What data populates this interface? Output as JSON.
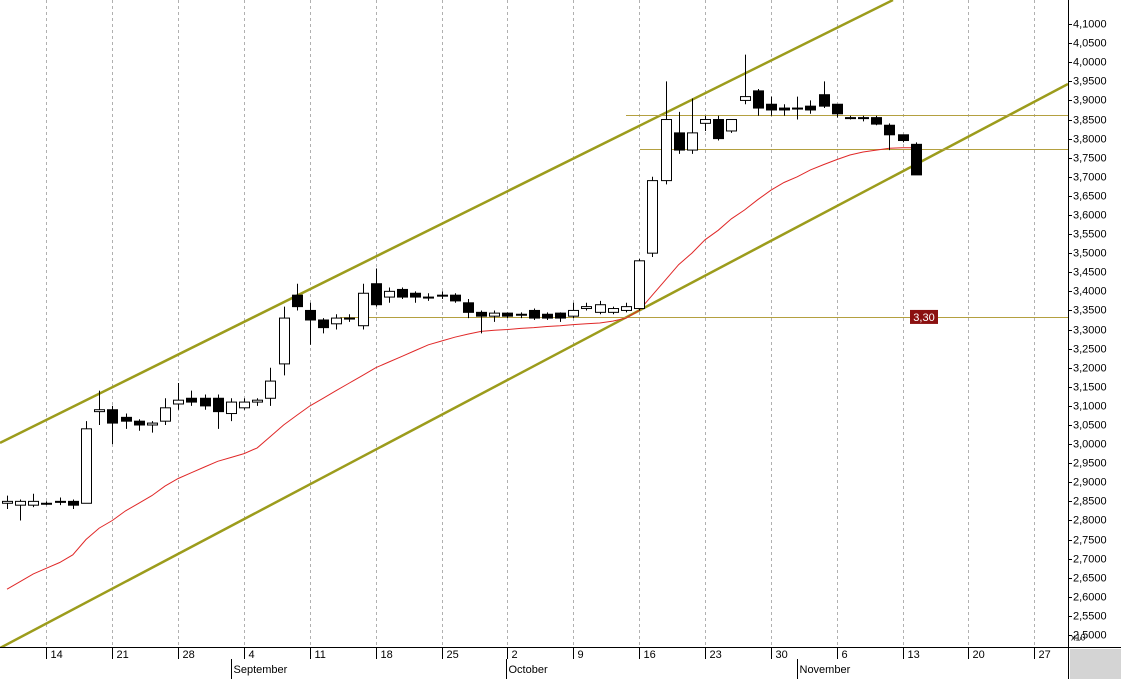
{
  "chart_data": {
    "type": "candlestick",
    "categories": [
      null,
      null,
      null,
      null,
      null,
      null,
      null,
      null,
      null,
      null,
      null,
      null,
      null,
      null,
      null,
      null,
      null,
      null,
      null,
      null,
      null,
      null,
      null,
      null,
      null,
      null,
      null,
      null,
      null,
      null,
      null,
      null,
      null,
      null,
      null,
      null,
      null,
      null,
      null,
      null,
      null,
      null,
      null,
      null,
      null,
      null,
      null,
      null,
      null,
      null,
      null,
      null,
      null,
      null,
      null,
      null,
      null,
      null,
      null,
      null,
      null,
      null,
      null,
      null,
      null,
      null,
      null,
      null,
      null,
      null
    ],
    "open": [
      2.845,
      2.84,
      2.84,
      2.845,
      2.85,
      2.85,
      2.845,
      3.085,
      3.09,
      3.07,
      3.06,
      3.05,
      3.06,
      3.105,
      3.12,
      3.12,
      3.12,
      3.08,
      3.095,
      3.11,
      3.12,
      3.21,
      3.39,
      3.35,
      3.325,
      3.315,
      3.33,
      3.31,
      3.42,
      3.385,
      3.405,
      3.395,
      3.385,
      3.39,
      3.39,
      3.37,
      3.345,
      3.335,
      3.343,
      3.34,
      3.35,
      3.34,
      3.343,
      3.335,
      3.355,
      3.345,
      3.345,
      3.35,
      3.355,
      3.5,
      3.69,
      3.815,
      3.77,
      3.84,
      3.85,
      3.82,
      3.9,
      3.925,
      3.89,
      3.88,
      3.88,
      3.885,
      3.915,
      3.89,
      3.855,
      3.853,
      3.855,
      3.835,
      3.81,
      3.785
    ],
    "high": [
      2.865,
      2.855,
      2.87,
      2.85,
      2.86,
      2.855,
      3.06,
      3.14,
      3.1,
      3.08,
      3.065,
      3.06,
      3.12,
      3.16,
      3.14,
      3.13,
      3.13,
      3.12,
      3.12,
      3.12,
      3.2,
      3.36,
      3.42,
      3.37,
      3.33,
      3.34,
      3.34,
      3.42,
      3.46,
      3.41,
      3.41,
      3.4,
      3.395,
      3.4,
      3.395,
      3.38,
      3.35,
      3.35,
      3.345,
      3.345,
      3.355,
      3.345,
      3.345,
      3.37,
      3.37,
      3.375,
      3.36,
      3.37,
      3.485,
      3.7,
      3.95,
      3.87,
      3.905,
      3.86,
      3.86,
      3.85,
      4.02,
      3.93,
      3.91,
      3.89,
      3.91,
      3.9,
      3.95,
      3.89,
      3.86,
      3.86,
      3.86,
      3.84,
      3.81,
      3.79
    ],
    "low": [
      2.83,
      2.8,
      2.835,
      2.84,
      2.84,
      2.83,
      2.845,
      3.05,
      3.0,
      3.04,
      3.035,
      3.03,
      3.05,
      3.09,
      3.1,
      3.09,
      3.04,
      3.06,
      3.09,
      3.1,
      3.1,
      3.18,
      3.35,
      3.26,
      3.29,
      3.3,
      3.32,
      3.3,
      3.36,
      3.37,
      3.38,
      3.37,
      3.375,
      3.38,
      3.37,
      3.33,
      3.29,
      3.32,
      3.33,
      3.33,
      3.325,
      3.325,
      3.32,
      3.33,
      3.35,
      3.34,
      3.34,
      3.345,
      3.35,
      3.49,
      3.68,
      3.76,
      3.76,
      3.82,
      3.795,
      3.815,
      3.89,
      3.86,
      3.86,
      3.86,
      3.85,
      3.865,
      3.88,
      3.855,
      3.85,
      3.845,
      3.835,
      3.77,
      3.79,
      3.705
    ],
    "close": [
      2.85,
      2.85,
      2.85,
      2.845,
      2.85,
      2.84,
      3.04,
      3.09,
      3.055,
      3.06,
      3.05,
      3.055,
      3.095,
      3.115,
      3.11,
      3.1,
      3.085,
      3.11,
      3.11,
      3.115,
      3.165,
      3.33,
      3.36,
      3.325,
      3.305,
      3.33,
      3.33,
      3.395,
      3.365,
      3.4,
      3.385,
      3.385,
      3.385,
      3.39,
      3.375,
      3.345,
      3.335,
      3.343,
      3.335,
      3.34,
      3.33,
      3.33,
      3.33,
      3.35,
      3.36,
      3.365,
      3.355,
      3.36,
      3.48,
      3.69,
      3.85,
      3.77,
      3.815,
      3.85,
      3.8,
      3.85,
      3.91,
      3.88,
      3.875,
      3.875,
      3.88,
      3.875,
      3.885,
      3.865,
      3.855,
      3.855,
      3.838,
      3.81,
      3.795,
      3.705
    ],
    "moving_average": {
      "color": "#e02828",
      "values": [
        2.62,
        2.64,
        2.66,
        2.675,
        2.69,
        2.71,
        2.75,
        2.78,
        2.8,
        2.825,
        2.845,
        2.865,
        2.89,
        2.91,
        2.925,
        2.94,
        2.955,
        2.965,
        2.975,
        2.99,
        3.02,
        3.05,
        3.075,
        3.1,
        3.12,
        3.14,
        3.16,
        3.18,
        3.2,
        3.215,
        3.23,
        3.245,
        3.26,
        3.27,
        3.28,
        3.288,
        3.295,
        3.298,
        3.3,
        3.303,
        3.305,
        3.308,
        3.31,
        3.313,
        3.315,
        3.317,
        3.322,
        3.33,
        3.35,
        3.39,
        3.43,
        3.47,
        3.5,
        3.535,
        3.56,
        3.59,
        3.613,
        3.64,
        3.665,
        3.685,
        3.7,
        3.718,
        3.732,
        3.745,
        3.757,
        3.765,
        3.77,
        3.775,
        3.776,
        3.776
      ]
    },
    "trendlines": [
      {
        "x": [
          -0.53,
          67.27
        ],
        "y": [
          3.003,
          4.163
        ]
      },
      {
        "x": [
          -0.53,
          80.56
        ],
        "y": [
          2.466,
          3.943
        ]
      }
    ],
    "trendline_color": "#9c9c1c",
    "hlines": [
      {
        "value": 3.861,
        "from": 47
      },
      {
        "value": 3.773,
        "from": 48.06
      },
      {
        "value": 3.333,
        "from": 25.3
      }
    ],
    "hline_color": "#b4a040",
    "price_tag": "3,30",
    "price_tag_color": "#8b1010",
    "xlim": [
      -0.53,
      80.56
    ],
    "ylim": [
      2.4686,
      4.163
    ],
    "xticks": [
      {
        "value": 3,
        "label": "14"
      },
      {
        "value": 8,
        "label": "21"
      },
      {
        "value": 13,
        "label": "28"
      },
      {
        "value": 18,
        "label": "4"
      },
      {
        "value": 23,
        "label": "11"
      },
      {
        "value": 28,
        "label": "18"
      },
      {
        "value": 33,
        "label": "25"
      },
      {
        "value": 38,
        "label": "2"
      },
      {
        "value": 43,
        "label": "9"
      },
      {
        "value": 48,
        "label": "16"
      },
      {
        "value": 53,
        "label": "23"
      },
      {
        "value": 58,
        "label": "30"
      },
      {
        "value": 63,
        "label": "6"
      },
      {
        "value": 68,
        "label": "13"
      },
      {
        "value": 73,
        "label": "20"
      },
      {
        "value": 78,
        "label": "27"
      }
    ],
    "months": [
      {
        "value": 17,
        "label": "September"
      },
      {
        "value": 37.9,
        "label": "October"
      },
      {
        "value": 60,
        "label": "November"
      }
    ],
    "yticks": [
      {
        "value": 2.5,
        "label": "2,5000"
      },
      {
        "value": 2.55,
        "label": "2,5500"
      },
      {
        "value": 2.6,
        "label": "2,6000"
      },
      {
        "value": 2.65,
        "label": "2,6500"
      },
      {
        "value": 2.7,
        "label": "2,7000"
      },
      {
        "value": 2.75,
        "label": "2,7500"
      },
      {
        "value": 2.8,
        "label": "2,8000"
      },
      {
        "value": 2.85,
        "label": "2,8500"
      },
      {
        "value": 2.9,
        "label": "2,9000"
      },
      {
        "value": 2.95,
        "label": "2,9500"
      },
      {
        "value": 3,
        "label": "3,0000"
      },
      {
        "value": 3.05,
        "label": "3,0500"
      },
      {
        "value": 3.1,
        "label": "3,1000"
      },
      {
        "value": 3.15,
        "label": "3,1500"
      },
      {
        "value": 3.2,
        "label": "3,2000"
      },
      {
        "value": 3.25,
        "label": "3,2500"
      },
      {
        "value": 3.3,
        "label": "3,3000"
      },
      {
        "value": 3.35,
        "label": "3,3500"
      },
      {
        "value": 3.4,
        "label": "3,4000"
      },
      {
        "value": 3.45,
        "label": "3,4500"
      },
      {
        "value": 3.5,
        "label": "3,5000"
      },
      {
        "value": 3.55,
        "label": "3,5500"
      },
      {
        "value": 3.6,
        "label": "3,6000"
      },
      {
        "value": 3.65,
        "label": "3,6500"
      },
      {
        "value": 3.7,
        "label": "3,7000"
      },
      {
        "value": 3.75,
        "label": "3,7500"
      },
      {
        "value": 3.8,
        "label": "3,8000"
      },
      {
        "value": 3.85,
        "label": "3,8500"
      },
      {
        "value": 3.9,
        "label": "3,9000"
      },
      {
        "value": 3.95,
        "label": "3,9500"
      },
      {
        "value": 4,
        "label": "4,0000"
      },
      {
        "value": 4.05,
        "label": "4,0500"
      },
      {
        "value": 4.1,
        "label": "4,1000"
      }
    ],
    "y_multiplier": "x10",
    "grid": true
  }
}
